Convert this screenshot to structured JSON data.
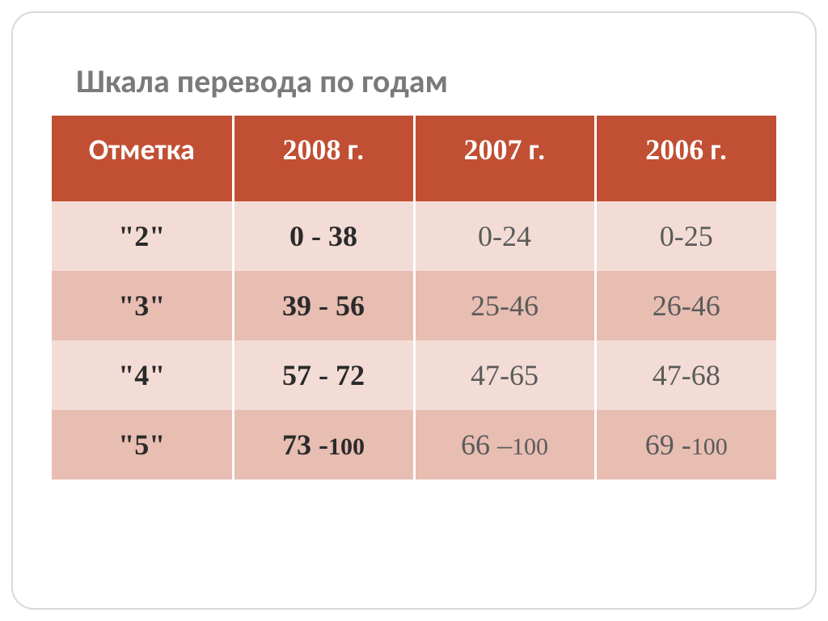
{
  "title": "Шкала перевода по годам",
  "colors": {
    "header_bg": "#c14f33",
    "row_odd": "#f3dcd6",
    "row_even": "#e8bdb2",
    "title_color": "#7a7a7a",
    "border_color": "#d9d9d9",
    "text_dark": "#2a2a2a",
    "text_muted": "#5b5b5b"
  },
  "table": {
    "type": "table",
    "columns": [
      {
        "label": "Отметка",
        "kind": "plain"
      },
      {
        "year": "2008",
        "suffix": "г.",
        "kind": "year"
      },
      {
        "year": "2007",
        "suffix": "г.",
        "kind": "year"
      },
      {
        "year": "2006",
        "suffix": "г.",
        "kind": "year"
      }
    ],
    "rows": [
      {
        "mark": "\"2\"",
        "cells": [
          {
            "text": "0 - 38",
            "bold": true
          },
          {
            "text": "0-24",
            "bold": false
          },
          {
            "text": "0-25",
            "bold": false
          }
        ]
      },
      {
        "mark": "\"3\"",
        "cells": [
          {
            "text": "39 - 56",
            "bold": true
          },
          {
            "text": "25-46",
            "bold": false
          },
          {
            "text": "26-46",
            "bold": false
          }
        ]
      },
      {
        "mark": "\"4\"",
        "cells": [
          {
            "text": "57 - 72",
            "bold": true
          },
          {
            "text": "47-65",
            "bold": false
          },
          {
            "text": "47-68",
            "bold": false
          }
        ]
      },
      {
        "mark": "\"5\"",
        "cells": [
          {
            "prefix": "73 -",
            "suffix": "100",
            "bold": true,
            "split": true
          },
          {
            "prefix": "66 –",
            "suffix": "100",
            "bold": false,
            "split": true
          },
          {
            "prefix": "69 -",
            "suffix": "100",
            "bold": false,
            "split": true
          }
        ]
      }
    ]
  }
}
